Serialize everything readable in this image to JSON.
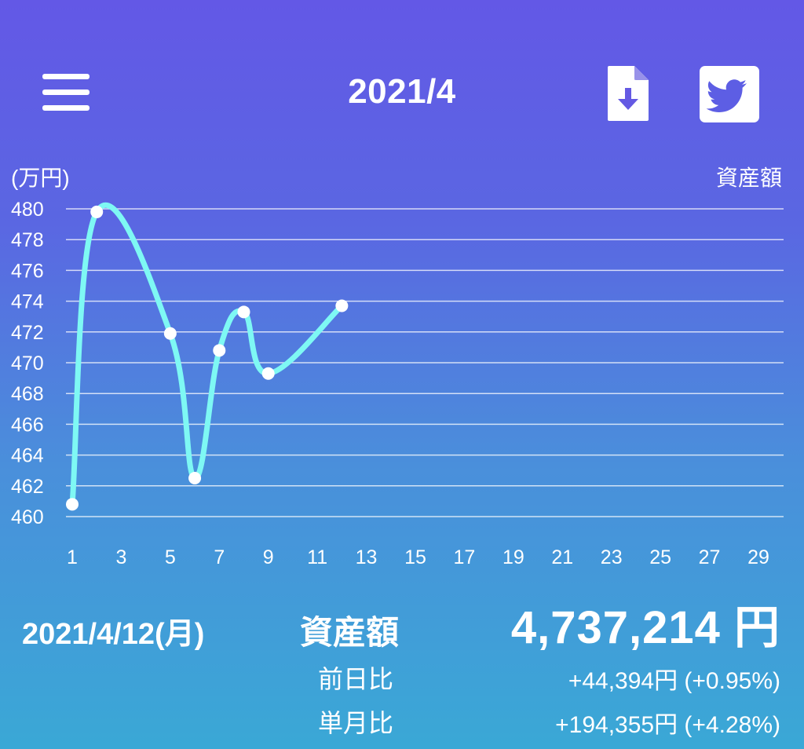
{
  "header": {
    "title": "2021/4",
    "menu_icon": "hamburger-menu-icon",
    "download_icon": "file-download-icon",
    "share_icon": "twitter-icon"
  },
  "chart_data": {
    "type": "line",
    "ylabel": "(万円)",
    "series": [
      {
        "name": "資産額",
        "x": [
          1,
          2,
          5,
          6,
          7,
          8,
          9,
          12
        ],
        "values": [
          460.8,
          479.8,
          471.9,
          462.5,
          470.8,
          473.3,
          469.3,
          473.7
        ]
      }
    ],
    "ylim": [
      460,
      480
    ],
    "y_ticks": [
      "480",
      "478",
      "476",
      "474",
      "472",
      "470",
      "468",
      "466",
      "464",
      "462",
      "460"
    ],
    "xlim": [
      1,
      30
    ],
    "x_ticks": [
      "1",
      "3",
      "5",
      "7",
      "9",
      "11",
      "13",
      "15",
      "17",
      "19",
      "21",
      "23",
      "25",
      "27",
      "29"
    ],
    "grid": true,
    "line_color": "#7ef8f4",
    "point_color": "#ffffff"
  },
  "summary": {
    "date": "2021/4/12(月)",
    "asset_label": "資産額",
    "asset_value": "4,737,214 円",
    "day_label": "前日比",
    "day_value": "+44,394円 (+0.95%)",
    "month_label": "単月比",
    "month_value": "+194,355円 (+4.28%)"
  }
}
